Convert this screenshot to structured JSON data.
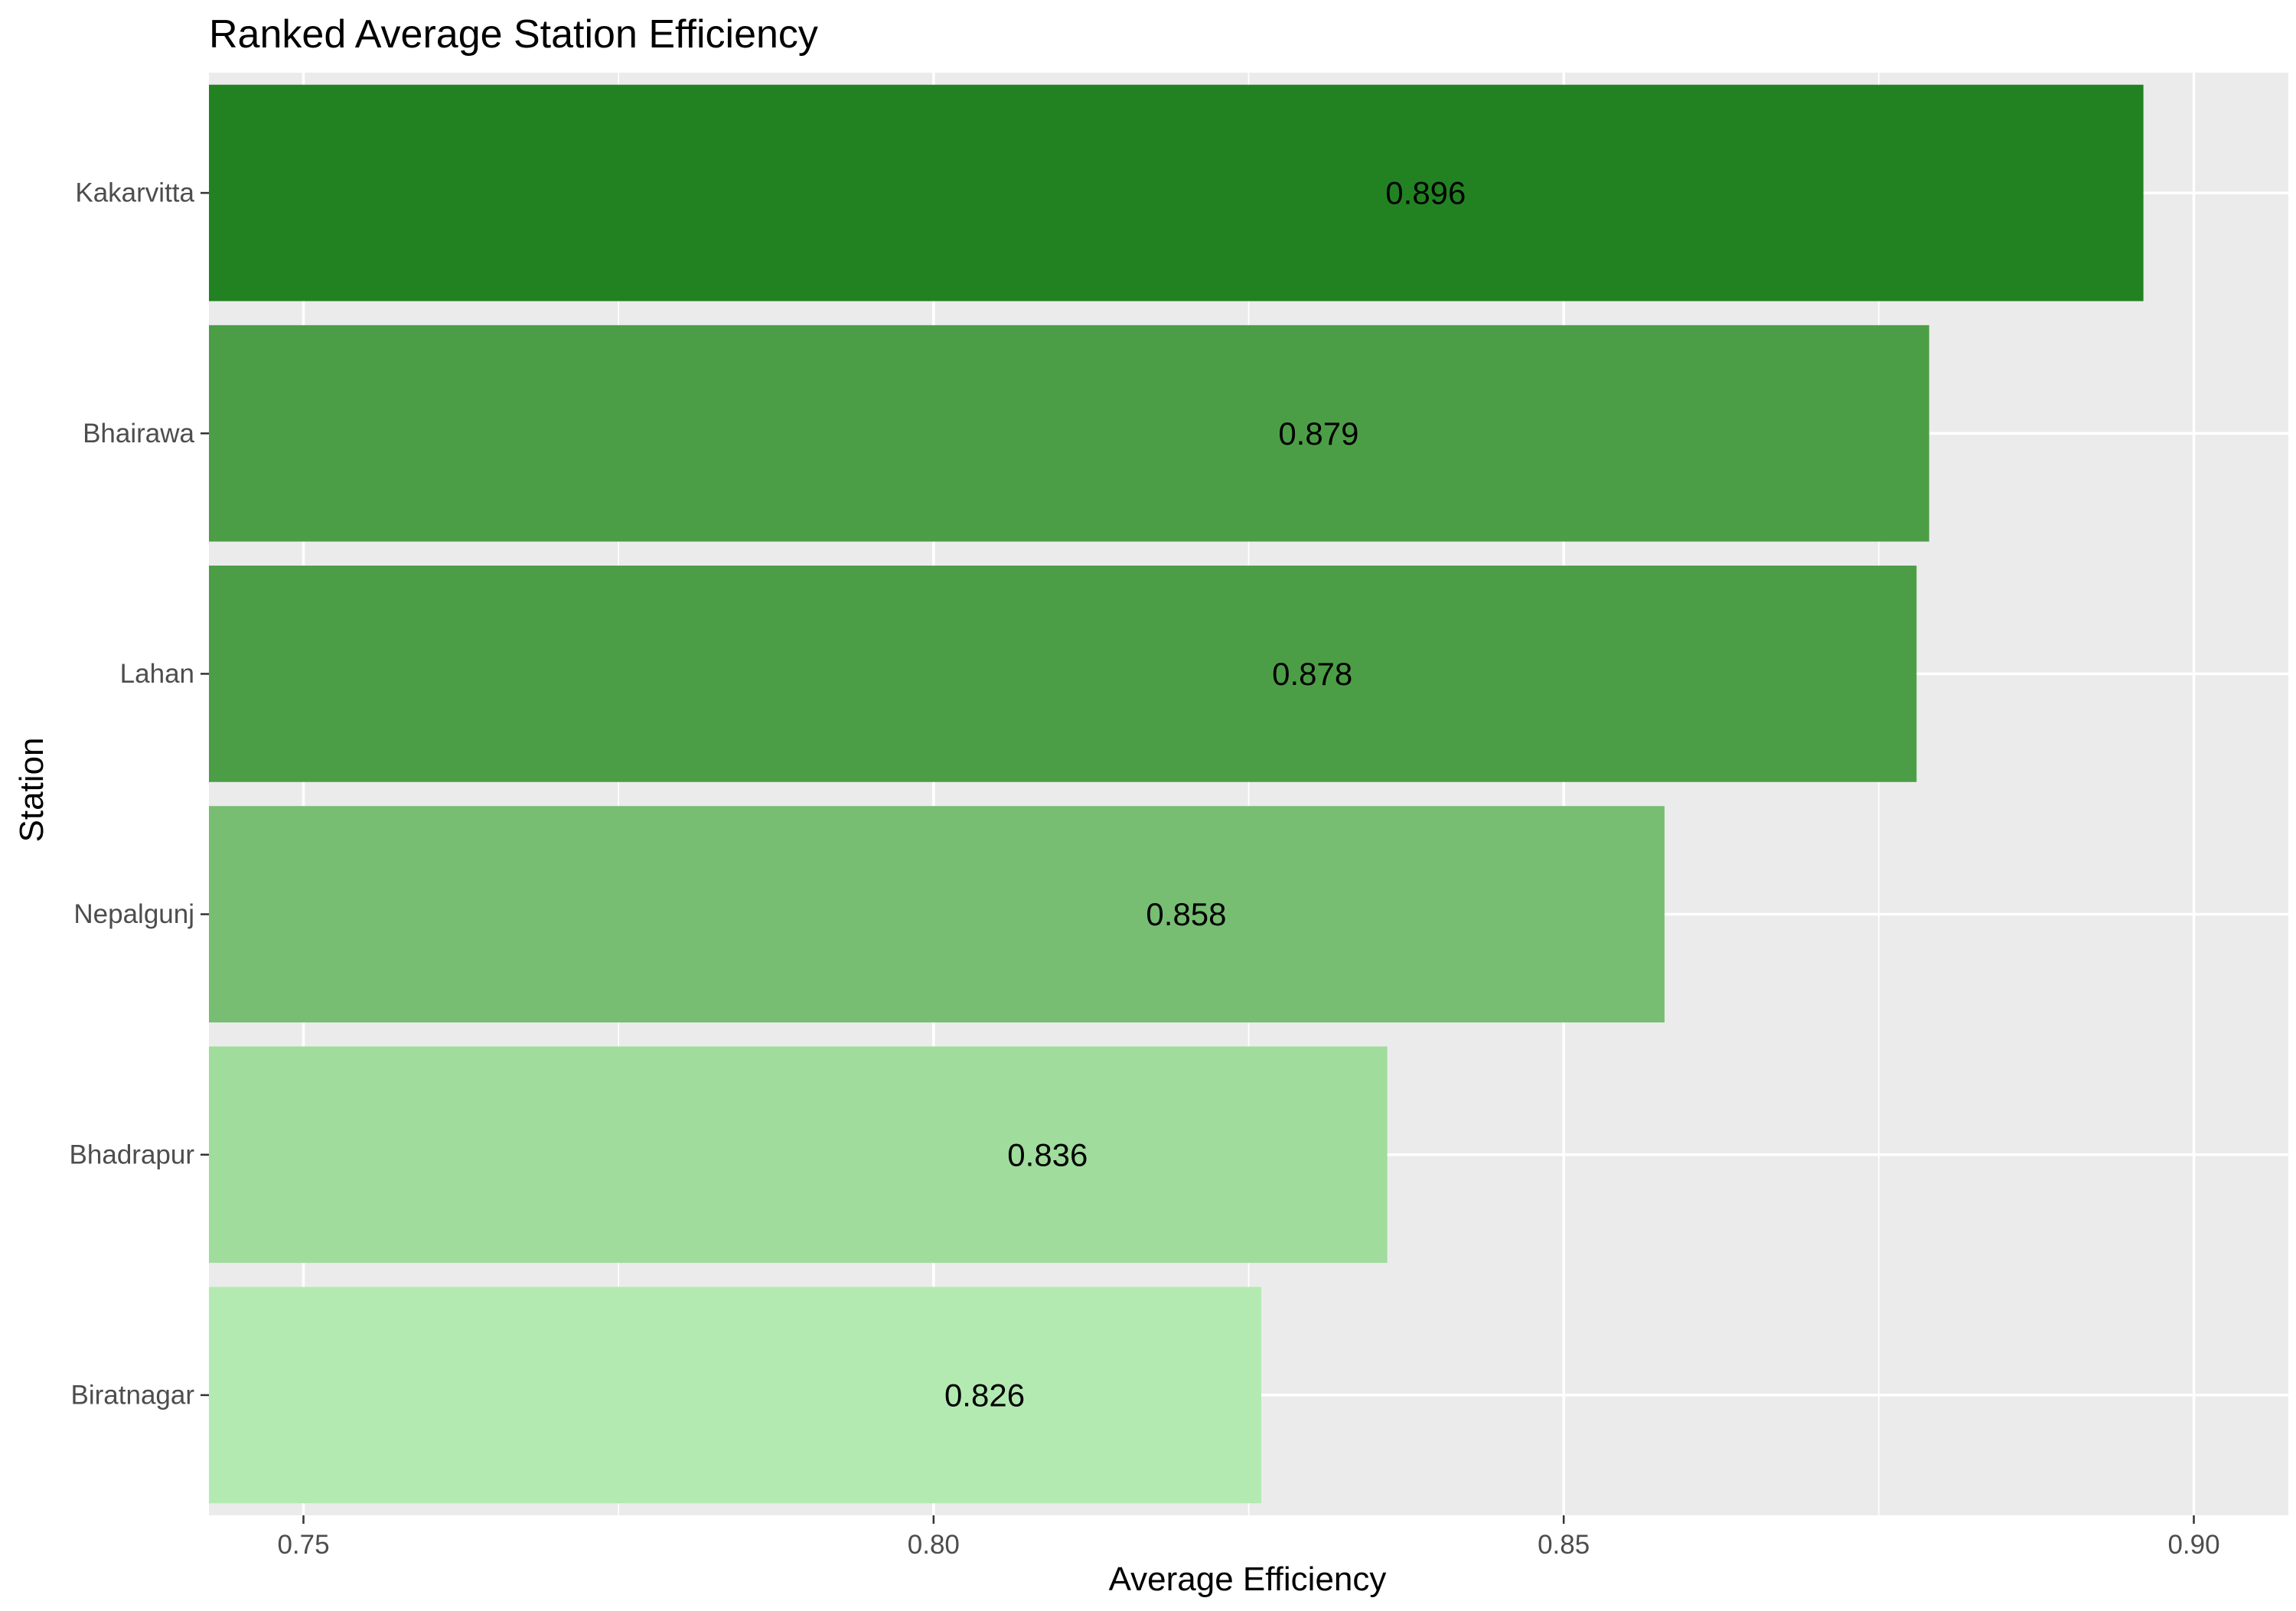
{
  "chart_data": {
    "type": "bar",
    "orientation": "horizontal",
    "title": "Ranked Average Station Efficiency",
    "xlabel": "Average Efficiency",
    "ylabel": "Station",
    "categories": [
      "Kakarvitta",
      "Bhairawa",
      "Lahan",
      "Nepalgunj",
      "Bhadrapur",
      "Biratnagar"
    ],
    "values": [
      0.896,
      0.879,
      0.878,
      0.858,
      0.836,
      0.826
    ],
    "data_labels": [
      "0.896",
      "0.879",
      "0.878",
      "0.858",
      "0.836",
      "0.826"
    ],
    "colors": [
      "#228222",
      "#4c9e46",
      "#4c9e46",
      "#77be73",
      "#a0dc9c",
      "#b3eab1"
    ],
    "xlim": [
      0.7425,
      0.9075
    ],
    "xticks": [
      0.75,
      0.8,
      0.85,
      0.9
    ],
    "xtick_labels": [
      "0.75",
      "0.80",
      "0.85",
      "0.90"
    ],
    "grid": true,
    "panel_background": "#ebebeb",
    "legend": "none"
  }
}
